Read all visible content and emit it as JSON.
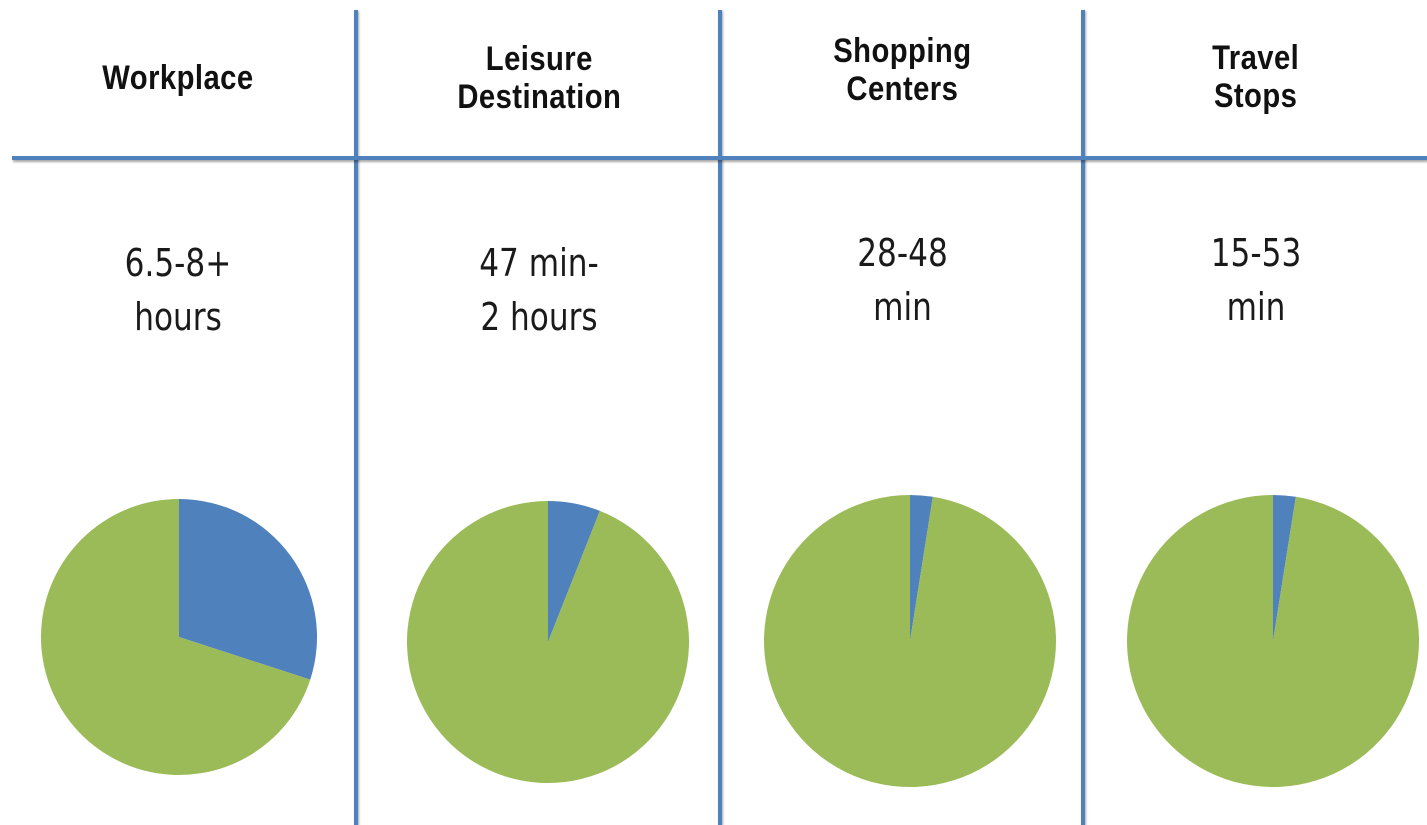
{
  "chart_data": {
    "type": "pie",
    "colors": {
      "time_spent": "#4f81bd",
      "remainder": "#9bbb59",
      "divider": "#4f81bd"
    },
    "slice_categories": [
      "time_spent",
      "remainder"
    ],
    "venues": [
      {
        "header": [
          "Workplace"
        ],
        "duration": [
          "6.5-8+",
          "hours"
        ],
        "slices": [
          0.3,
          0.7
        ]
      },
      {
        "header": [
          "Leisure",
          "Destination"
        ],
        "duration": [
          "47 min-",
          "2 hours"
        ],
        "slices": [
          0.06,
          0.94
        ]
      },
      {
        "header": [
          "Shopping",
          "Centers"
        ],
        "duration": [
          "28-48",
          "min"
        ],
        "slices": [
          0.025,
          0.975
        ]
      },
      {
        "header": [
          "Travel",
          "Stops"
        ],
        "duration": [
          "15-53",
          "min"
        ],
        "slices": [
          0.025,
          0.975
        ]
      }
    ]
  }
}
